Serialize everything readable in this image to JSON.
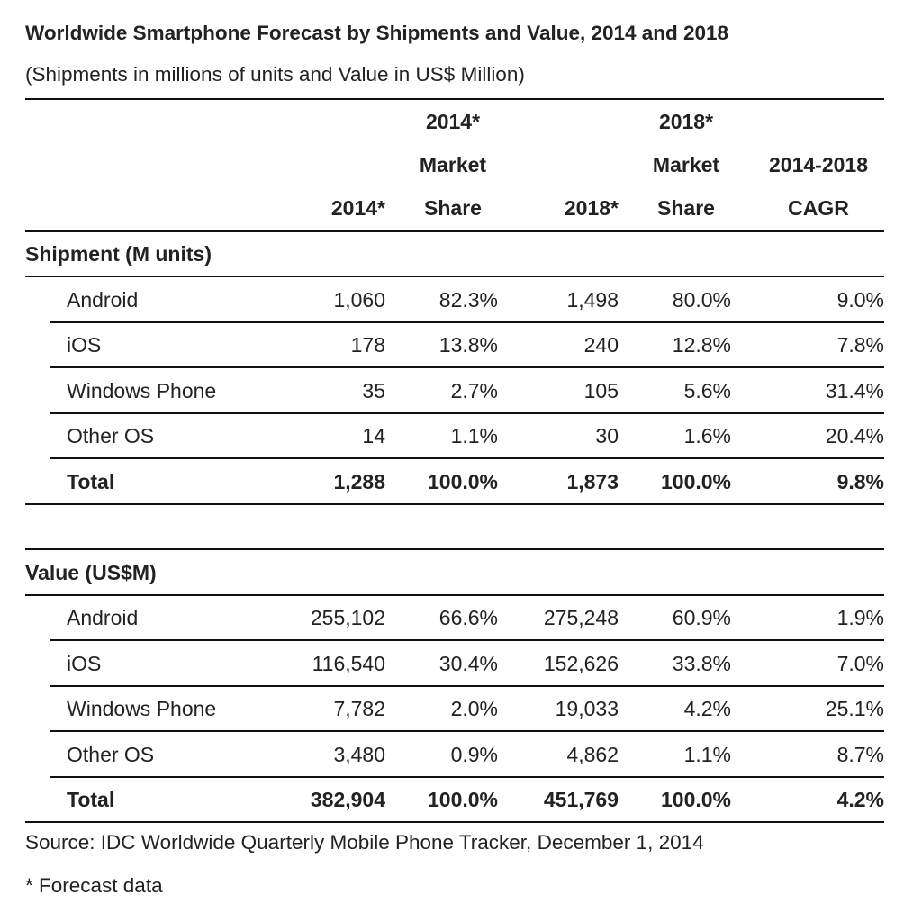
{
  "title": "Worldwide Smartphone Forecast by Shipments and Value, 2014 and 2018",
  "subtitle": "(Shipments in millions of units and Value in US$ Million)",
  "headers": {
    "c1": [
      "",
      "",
      "2014*"
    ],
    "c2": [
      "2014*",
      "Market",
      "Share"
    ],
    "c3": [
      "",
      "",
      "2018*"
    ],
    "c4": [
      "2018*",
      "Market",
      "Share"
    ],
    "c5": [
      "",
      "2014-2018",
      "CAGR"
    ]
  },
  "sections": [
    {
      "label": "Shipment (M units)",
      "rows": [
        [
          "Android",
          "1,060",
          "82.3%",
          "1,498",
          "80.0%",
          "9.0%"
        ],
        [
          "iOS",
          "178",
          "13.8%",
          "240",
          "12.8%",
          "7.8%"
        ],
        [
          "Windows Phone",
          "35",
          "2.7%",
          "105",
          "5.6%",
          "31.4%"
        ],
        [
          "Other OS",
          "14",
          "1.1%",
          "30",
          "1.6%",
          "20.4%"
        ],
        [
          "Total",
          "1,288",
          "100.0%",
          "1,873",
          "100.0%",
          "9.8%"
        ]
      ]
    },
    {
      "label": "Value (US$M)",
      "rows": [
        [
          "Android",
          "255,102",
          "66.6%",
          "275,248",
          "60.9%",
          "1.9%"
        ],
        [
          "iOS",
          "116,540",
          "30.4%",
          "152,626",
          "33.8%",
          "7.0%"
        ],
        [
          "Windows Phone",
          "7,782",
          "2.0%",
          "19,033",
          "4.2%",
          "25.1%"
        ],
        [
          "Other OS",
          "3,480",
          "0.9%",
          "4,862",
          "1.1%",
          "8.7%"
        ],
        [
          "Total",
          "382,904",
          "100.0%",
          "451,769",
          "100.0%",
          "4.2%"
        ]
      ]
    }
  ],
  "source": "Source: IDC Worldwide Quarterly Mobile Phone Tracker, December 1, 2014",
  "footnote": "* Forecast data",
  "chart_data": {
    "type": "table",
    "title": "Worldwide Smartphone Forecast by Shipments and Value, 2014 and 2018",
    "subtitle": "(Shipments in millions of units and Value in US$ Million)",
    "columns": [
      "",
      "2014*",
      "2014* Market Share",
      "2018*",
      "2018* Market Share",
      "2014-2018 CAGR"
    ]
  }
}
